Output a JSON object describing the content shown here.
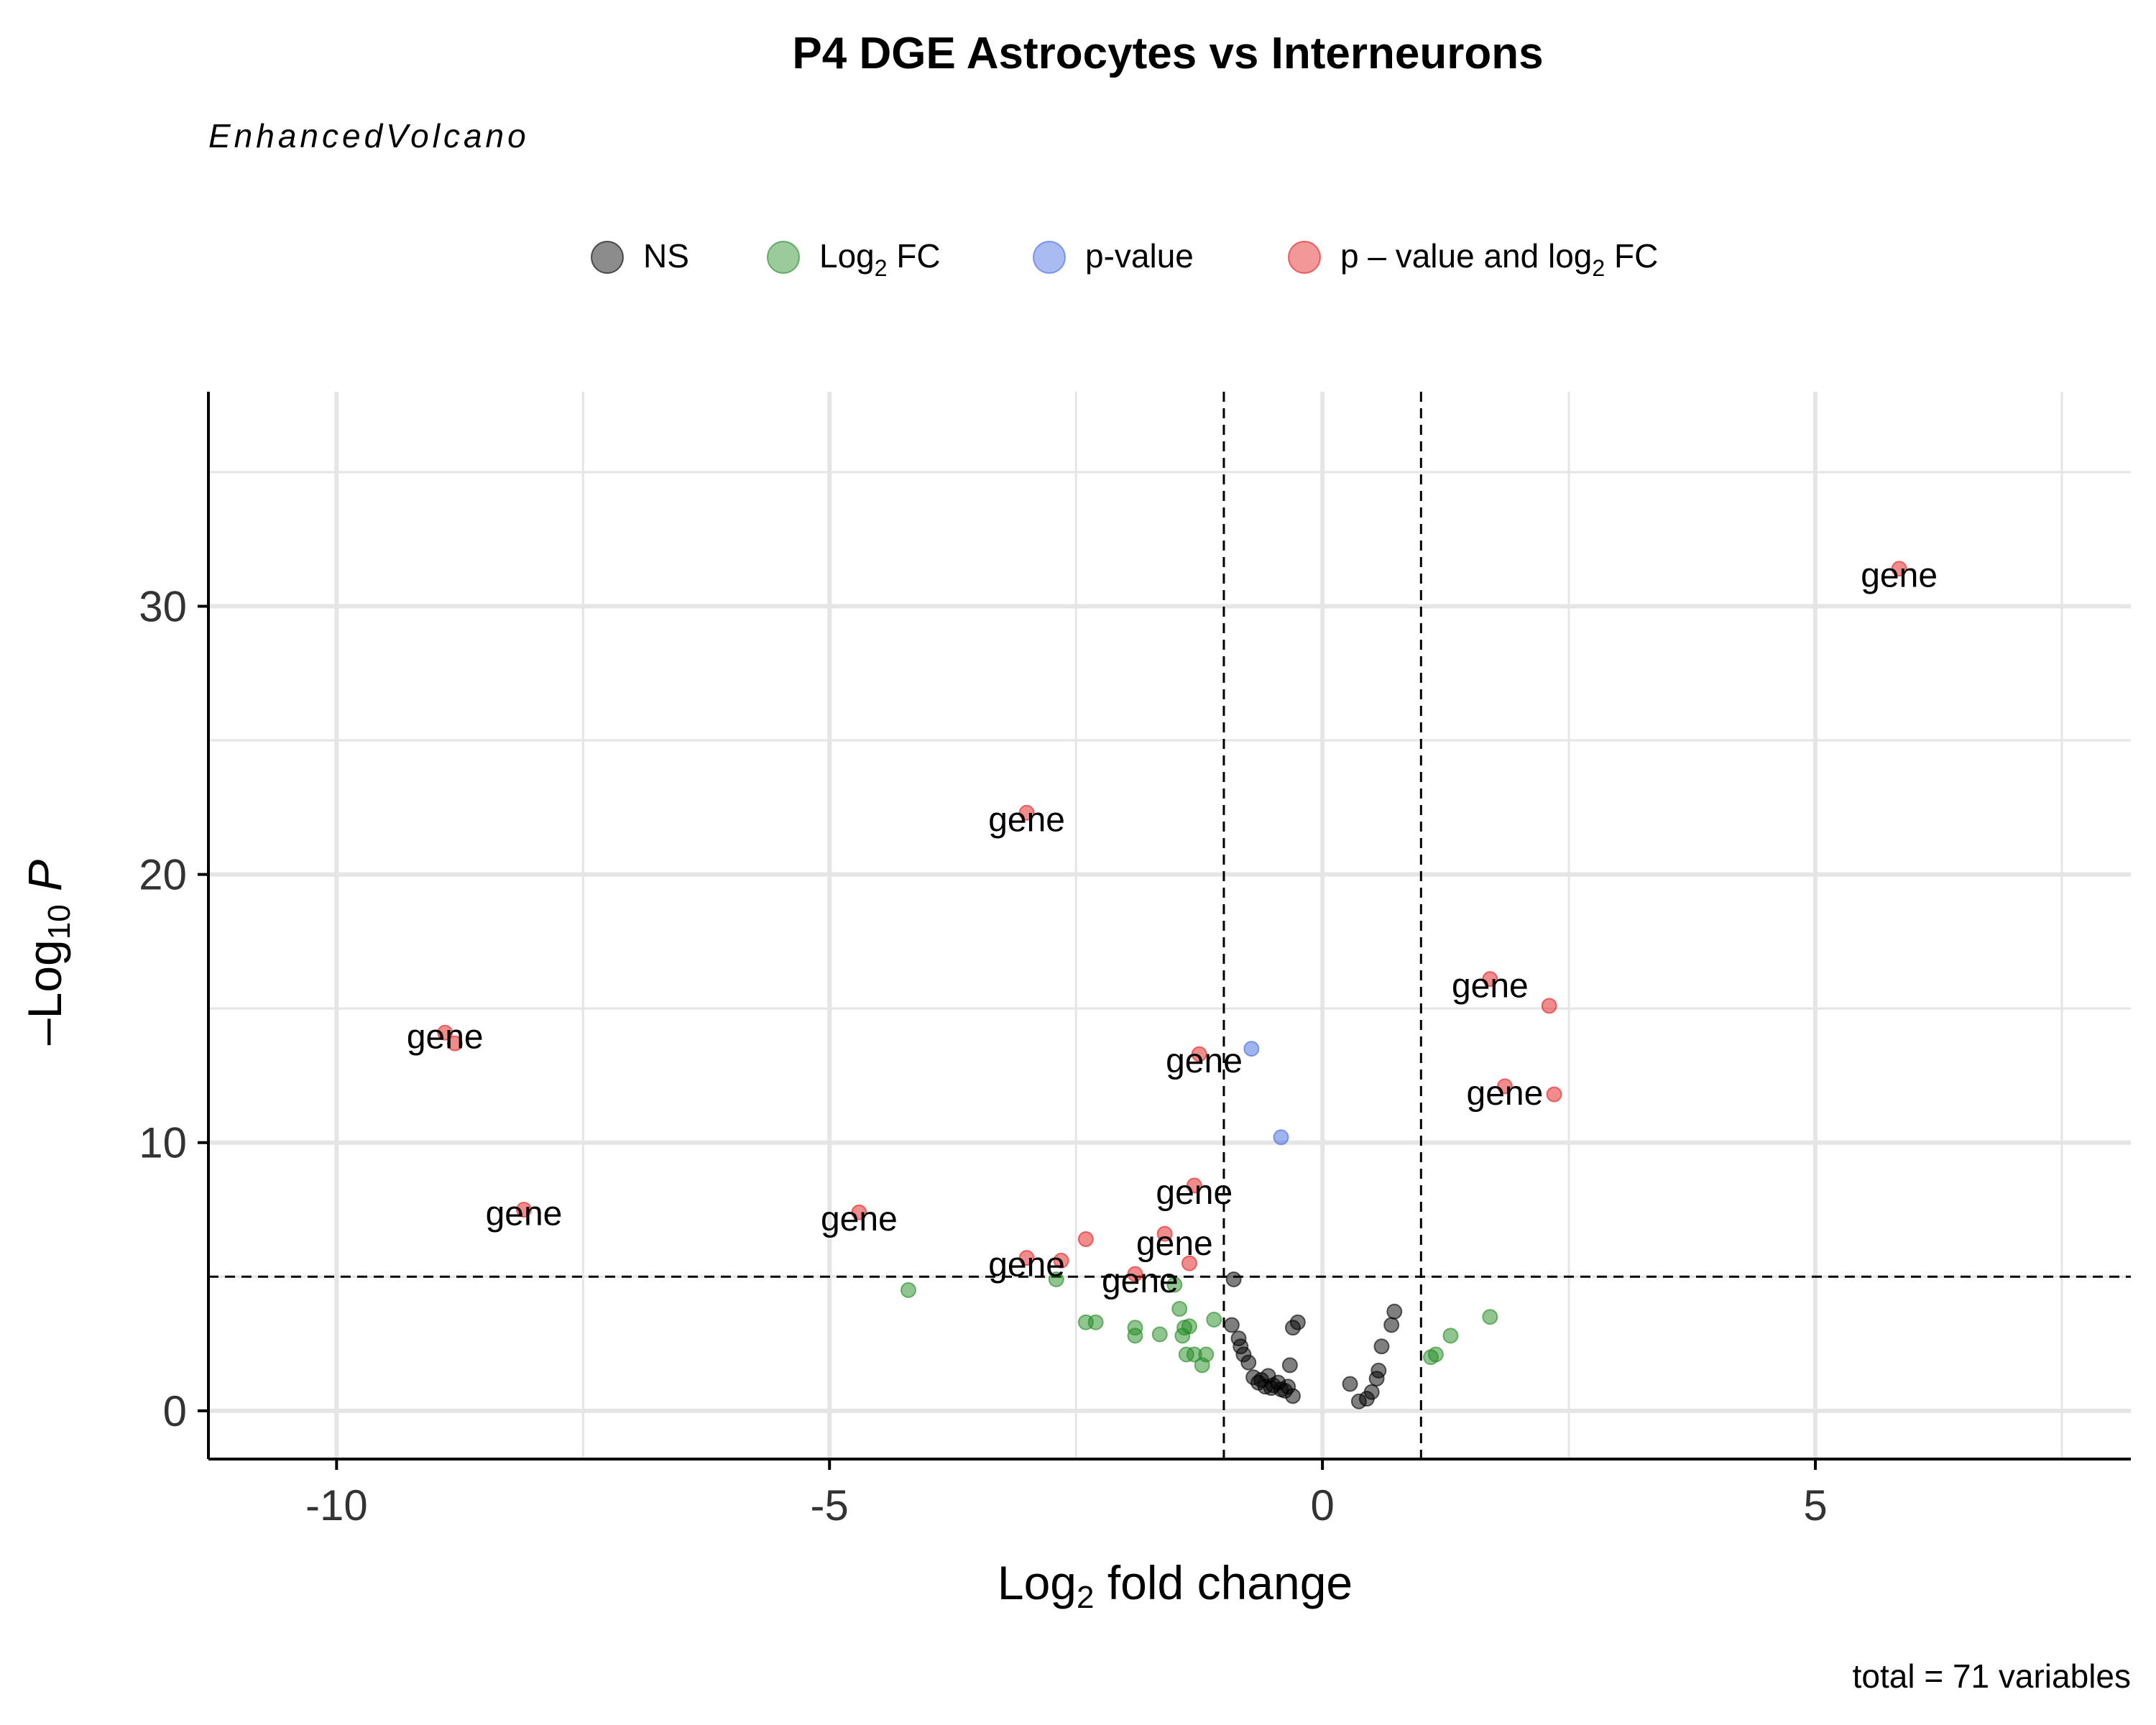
{
  "colors": {
    "ns": "#000000",
    "log2fc": "#228B22",
    "pvalue": "#4169E1",
    "both": "#E41A1C",
    "grid": "#e5e5e5",
    "text": "#333333"
  },
  "chart_data": {
    "type": "scatter",
    "title": "P4 DGE Astrocytes vs Interneurons",
    "subtitle": "EnhancedVolcano",
    "caption": "total = 71 variables",
    "xlabel": {
      "pre": "Log",
      "sub": "2",
      "post": " fold change"
    },
    "ylabel": {
      "pre": "–Log",
      "sub": "10",
      "post": " P"
    },
    "xlim": [
      -11.3,
      8.2
    ],
    "ylim": [
      -1.8,
      38
    ],
    "x_ticks": [
      {
        "value": -10,
        "label": "-10"
      },
      {
        "value": -5,
        "label": "-5"
      },
      {
        "value": 0,
        "label": "0"
      },
      {
        "value": 5,
        "label": "5"
      }
    ],
    "y_ticks": [
      {
        "value": 0,
        "label": "0"
      },
      {
        "value": 10,
        "label": "10"
      },
      {
        "value": 20,
        "label": "20"
      },
      {
        "value": 30,
        "label": "30"
      }
    ],
    "grid": true,
    "fc_cutoff": 1,
    "p_cutoff": 5,
    "legend": {
      "position": "top",
      "items": [
        {
          "key": "ns",
          "pre": "NS",
          "sub": "",
          "post": ""
        },
        {
          "key": "log2fc",
          "pre": "Log",
          "sub": "2",
          "post": " FC"
        },
        {
          "key": "pvalue",
          "pre": "p-value",
          "sub": "",
          "post": ""
        },
        {
          "key": "both",
          "pre": "p – value and log",
          "sub": "2",
          "post": " FC"
        }
      ]
    },
    "series": [
      {
        "key": "ns",
        "points": [
          [
            -0.9,
            4.9
          ],
          [
            -0.92,
            3.2
          ],
          [
            -0.85,
            2.7
          ],
          [
            -0.83,
            2.4
          ],
          [
            -0.8,
            2.1
          ],
          [
            -0.75,
            1.8
          ],
          [
            -0.7,
            1.25
          ],
          [
            -0.65,
            1.05
          ],
          [
            -0.62,
            1.15
          ],
          [
            -0.58,
            0.9
          ],
          [
            -0.55,
            1.3
          ],
          [
            -0.52,
            0.85
          ],
          [
            -0.5,
            0.95
          ],
          [
            -0.45,
            1.05
          ],
          [
            -0.42,
            0.8
          ],
          [
            -0.38,
            0.75
          ],
          [
            -0.35,
            0.9
          ],
          [
            -0.33,
            1.7
          ],
          [
            -0.3,
            3.1
          ],
          [
            -0.25,
            3.3
          ],
          [
            -0.3,
            0.55
          ],
          [
            0.28,
            1.0
          ],
          [
            0.37,
            0.35
          ],
          [
            0.45,
            0.45
          ],
          [
            0.5,
            0.7
          ],
          [
            0.55,
            1.2
          ],
          [
            0.57,
            1.5
          ],
          [
            0.6,
            2.4
          ],
          [
            0.7,
            3.2
          ],
          [
            0.73,
            3.7
          ]
        ]
      },
      {
        "key": "log2fc",
        "points": [
          [
            -4.2,
            4.5
          ],
          [
            -2.7,
            4.9
          ],
          [
            -2.4,
            3.3
          ],
          [
            -2.3,
            3.3
          ],
          [
            -1.9,
            3.1
          ],
          [
            -1.9,
            2.8
          ],
          [
            -1.65,
            2.85
          ],
          [
            -1.5,
            4.7
          ],
          [
            -1.45,
            3.8
          ],
          [
            -1.42,
            2.8
          ],
          [
            -1.4,
            3.1
          ],
          [
            -1.38,
            2.1
          ],
          [
            -1.35,
            3.15
          ],
          [
            -1.3,
            2.1
          ],
          [
            -1.22,
            1.7
          ],
          [
            -1.18,
            2.1
          ],
          [
            -1.1,
            3.4
          ],
          [
            1.1,
            2.0
          ],
          [
            1.15,
            2.1
          ],
          [
            1.3,
            2.8
          ],
          [
            1.7,
            3.5
          ]
        ]
      },
      {
        "key": "pvalue",
        "points": [
          [
            -0.72,
            13.5
          ],
          [
            -0.42,
            10.2
          ]
        ]
      },
      {
        "key": "both",
        "points": [
          [
            -8.9,
            14.1
          ],
          [
            -8.8,
            13.7
          ],
          [
            -8.1,
            7.5
          ],
          [
            -4.7,
            7.4
          ],
          [
            -3.0,
            22.3
          ],
          [
            -3.0,
            5.7
          ],
          [
            -2.65,
            5.6
          ],
          [
            -2.4,
            6.4
          ],
          [
            -1.9,
            5.1
          ],
          [
            -1.6,
            6.6
          ],
          [
            -1.35,
            5.5
          ],
          [
            -1.3,
            8.4
          ],
          [
            -1.25,
            13.3
          ],
          [
            1.7,
            16.1
          ],
          [
            1.85,
            12.1
          ],
          [
            2.3,
            15.1
          ],
          [
            2.35,
            11.8
          ],
          [
            5.85,
            31.4
          ]
        ]
      }
    ],
    "annotations": [
      {
        "text": "gene",
        "x": -8.9,
        "y": 14.0
      },
      {
        "text": "gene",
        "x": -8.1,
        "y": 7.4
      },
      {
        "text": "gene",
        "x": -4.7,
        "y": 7.2
      },
      {
        "text": "gene",
        "x": -3.0,
        "y": 22.1
      },
      {
        "text": "gene",
        "x": -3.0,
        "y": 5.5
      },
      {
        "text": "gene",
        "x": -1.2,
        "y": 13.1
      },
      {
        "text": "gene",
        "x": -1.3,
        "y": 8.2
      },
      {
        "text": "gene",
        "x": -1.5,
        "y": 6.3
      },
      {
        "text": "gene",
        "x": -1.85,
        "y": 4.9
      },
      {
        "text": "gene",
        "x": 1.7,
        "y": 15.9
      },
      {
        "text": "gene",
        "x": 1.85,
        "y": 11.9
      },
      {
        "text": "gene",
        "x": 5.85,
        "y": 31.2
      }
    ]
  }
}
